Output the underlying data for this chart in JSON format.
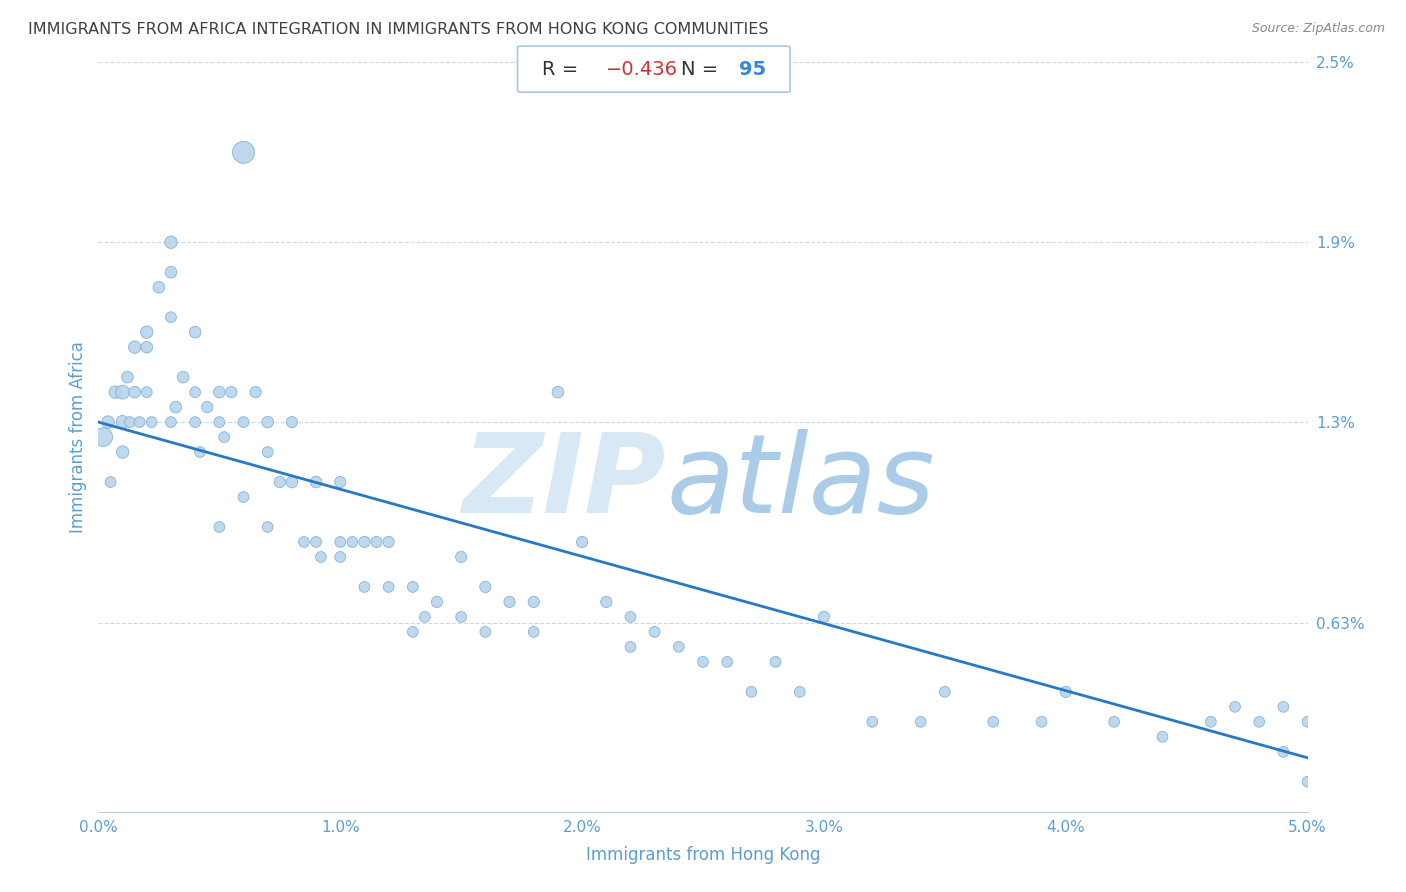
{
  "title": "IMMIGRANTS FROM AFRICA INTEGRATION IN IMMIGRANTS FROM HONG KONG COMMUNITIES",
  "source": "Source: ZipAtlas.com",
  "xlabel": "Immigrants from Hong Kong",
  "ylabel": "Immigrants from Africa",
  "R": -0.436,
  "N": 95,
  "xlim": [
    0.0,
    0.05
  ],
  "ylim": [
    0.0,
    0.025
  ],
  "xtick_labels": [
    "0.0%",
    "1.0%",
    "2.0%",
    "3.0%",
    "4.0%",
    "5.0%"
  ],
  "xtick_vals": [
    0.0,
    0.01,
    0.02,
    0.03,
    0.04,
    0.05
  ],
  "ytick_vals": [
    0.025,
    0.019,
    0.013,
    0.0063
  ],
  "ytick_labels": [
    "2.5%",
    "1.9%",
    "1.3%",
    "0.63%"
  ],
  "dot_color": "#b8d4ec",
  "dot_edge_color": "#7aafd4",
  "line_color": "#2878c8",
  "title_color": "#404040",
  "axis_color": "#5a9fd4",
  "grid_color": "#c8dce8",
  "watermark_color1": "#d8e8f4",
  "watermark_color2": "#aacce8",
  "scatter_x": [
    0.0002,
    0.0004,
    0.0005,
    0.0007,
    0.001,
    0.001,
    0.001,
    0.0012,
    0.0013,
    0.0015,
    0.0015,
    0.0017,
    0.002,
    0.002,
    0.002,
    0.0022,
    0.0025,
    0.003,
    0.003,
    0.003,
    0.003,
    0.0032,
    0.0035,
    0.004,
    0.004,
    0.004,
    0.0042,
    0.0045,
    0.005,
    0.005,
    0.005,
    0.0052,
    0.0055,
    0.006,
    0.006,
    0.006,
    0.0065,
    0.007,
    0.007,
    0.007,
    0.0075,
    0.008,
    0.008,
    0.0085,
    0.009,
    0.009,
    0.0092,
    0.01,
    0.01,
    0.01,
    0.0105,
    0.011,
    0.011,
    0.0115,
    0.012,
    0.012,
    0.013,
    0.013,
    0.0135,
    0.014,
    0.015,
    0.015,
    0.016,
    0.016,
    0.017,
    0.018,
    0.018,
    0.019,
    0.02,
    0.021,
    0.022,
    0.022,
    0.023,
    0.024,
    0.025,
    0.026,
    0.027,
    0.028,
    0.029,
    0.03,
    0.032,
    0.034,
    0.035,
    0.037,
    0.039,
    0.04,
    0.042,
    0.044,
    0.046,
    0.047,
    0.048,
    0.049,
    0.049,
    0.05,
    0.05
  ],
  "scatter_y": [
    0.0125,
    0.013,
    0.011,
    0.014,
    0.014,
    0.013,
    0.012,
    0.0145,
    0.013,
    0.0155,
    0.014,
    0.013,
    0.016,
    0.0155,
    0.014,
    0.013,
    0.0175,
    0.019,
    0.018,
    0.0165,
    0.013,
    0.0135,
    0.0145,
    0.016,
    0.014,
    0.013,
    0.012,
    0.0135,
    0.014,
    0.013,
    0.0095,
    0.0125,
    0.014,
    0.022,
    0.013,
    0.0105,
    0.014,
    0.013,
    0.012,
    0.0095,
    0.011,
    0.011,
    0.013,
    0.009,
    0.011,
    0.009,
    0.0085,
    0.011,
    0.009,
    0.0085,
    0.009,
    0.009,
    0.0075,
    0.009,
    0.0075,
    0.009,
    0.0075,
    0.006,
    0.0065,
    0.007,
    0.0085,
    0.0065,
    0.0075,
    0.006,
    0.007,
    0.007,
    0.006,
    0.014,
    0.009,
    0.007,
    0.0065,
    0.0055,
    0.006,
    0.0055,
    0.005,
    0.005,
    0.004,
    0.005,
    0.004,
    0.0065,
    0.003,
    0.003,
    0.004,
    0.003,
    0.003,
    0.004,
    0.003,
    0.0025,
    0.003,
    0.0035,
    0.003,
    0.0035,
    0.002,
    0.003,
    0.001
  ],
  "scatter_sizes": [
    180,
    80,
    60,
    80,
    100,
    90,
    80,
    70,
    60,
    80,
    70,
    60,
    80,
    70,
    60,
    60,
    70,
    80,
    70,
    60,
    60,
    70,
    70,
    70,
    60,
    60,
    60,
    65,
    70,
    60,
    60,
    60,
    65,
    250,
    60,
    60,
    65,
    70,
    60,
    60,
    65,
    70,
    65,
    60,
    70,
    60,
    60,
    65,
    60,
    60,
    60,
    65,
    60,
    65,
    60,
    65,
    60,
    60,
    60,
    65,
    65,
    60,
    65,
    60,
    65,
    65,
    60,
    70,
    65,
    65,
    60,
    60,
    60,
    60,
    60,
    60,
    60,
    60,
    60,
    65,
    60,
    60,
    60,
    60,
    60,
    65,
    60,
    60,
    60,
    60,
    60,
    60,
    60,
    60,
    60
  ],
  "line_x": [
    0.0,
    0.05
  ],
  "line_y": [
    0.013,
    0.0018
  ]
}
